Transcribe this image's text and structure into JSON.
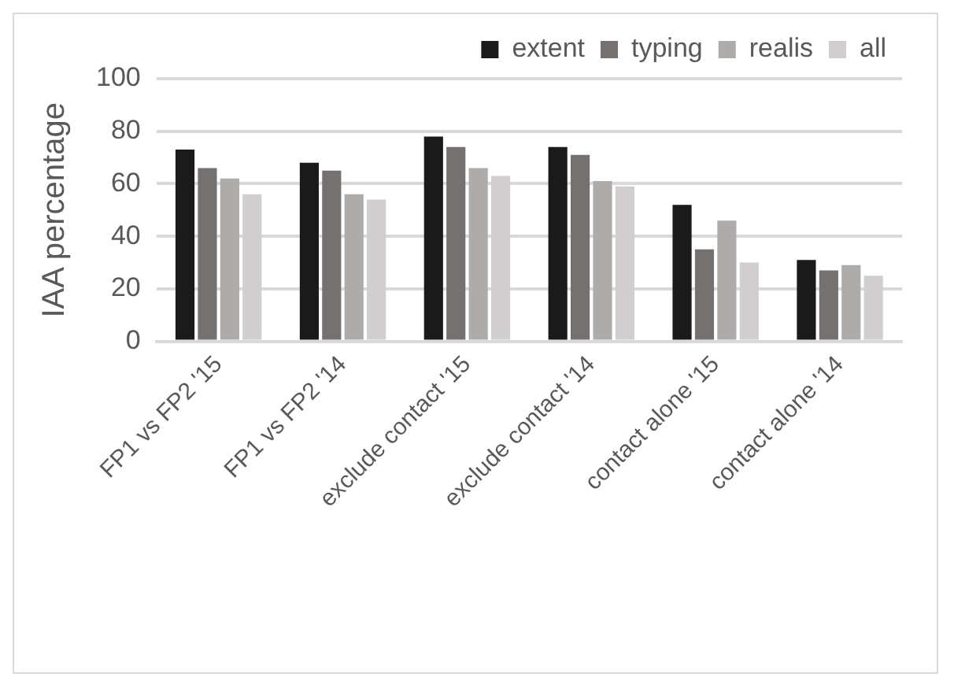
{
  "chart_data": {
    "type": "bar",
    "ylabel": "IAA percentage",
    "categories": [
      "FP1 vs FP2 '15",
      "FP1 vs FP2 '14",
      "exclude contact '15",
      "exclude contact '14",
      "contact alone '15",
      "contact alone '14"
    ],
    "series": [
      {
        "name": "extent",
        "color": "#1a1a1a",
        "values": [
          73,
          68,
          78,
          74,
          52,
          31
        ]
      },
      {
        "name": "typing",
        "color": "#757171",
        "values": [
          66,
          65,
          74,
          71,
          35,
          27
        ]
      },
      {
        "name": "realis",
        "color": "#aeabab",
        "values": [
          62,
          56,
          66,
          61,
          46,
          29
        ]
      },
      {
        "name": "all",
        "color": "#d0cece",
        "values": [
          56,
          54,
          63,
          59,
          30,
          25
        ]
      }
    ],
    "ylim": [
      0,
      100
    ],
    "yticks": [
      0,
      20,
      40,
      60,
      80,
      100
    ],
    "grid": "y",
    "legend": "top right"
  }
}
